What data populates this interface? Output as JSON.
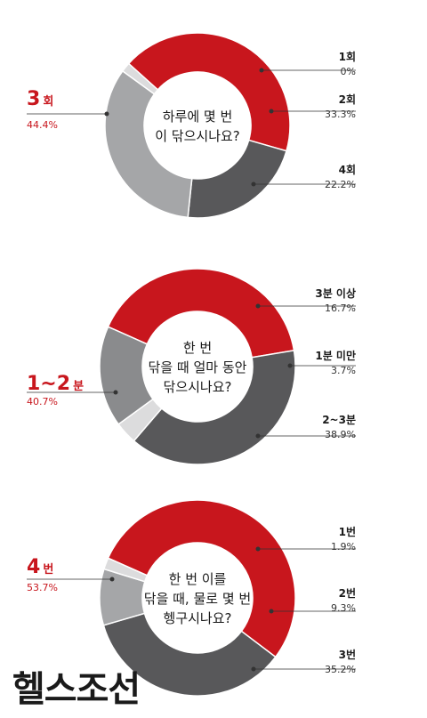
{
  "chart_data": [
    {
      "type": "donut",
      "title": "하루에 몇 번 이 닦으시나요?",
      "title_lines": [
        "하루에 몇 번",
        "이 닦으시나요?"
      ],
      "slices": [
        {
          "label": "3회",
          "label_main": "3",
          "label_unit": "회",
          "value_text": "44.4%",
          "value": 44.4,
          "color": "#c8161d",
          "emphasis": true
        },
        {
          "label": "4회",
          "value_text": "22.2%",
          "value": 22.2,
          "color": "#58585a"
        },
        {
          "label": "2회",
          "value_text": "33.3%",
          "value": 33.3,
          "color": "#a5a6a8"
        },
        {
          "label": "1회",
          "value_text": "0%",
          "value": 0,
          "color": "#dcdcdd"
        }
      ]
    },
    {
      "type": "donut",
      "title": "한 번 닦을 때 얼마 동안 닦으시나요?",
      "title_lines": [
        "한 번",
        "닦을 때 얼마 동안",
        "닦으시나요?"
      ],
      "slices": [
        {
          "label": "1~2분",
          "label_main": "1~2",
          "label_unit": "분",
          "value_text": "40.7%",
          "value": 40.7,
          "color": "#c8161d",
          "emphasis": true
        },
        {
          "label": "2~3분",
          "value_text": "38.9%",
          "value": 38.9,
          "color": "#58585a"
        },
        {
          "label": "1분 미만",
          "value_text": "3.7%",
          "value": 3.7,
          "color": "#dcdcdd"
        },
        {
          "label": "3분 이상",
          "value_text": "16.7%",
          "value": 16.7,
          "color": "#8a8b8d"
        }
      ]
    },
    {
      "type": "donut",
      "title": "한 번 이를 닦을 때, 물로 몇 번 헹구시나요?",
      "title_lines": [
        "한 번 이를",
        "닦을 때, 물로 몇 번",
        "헹구시나요?"
      ],
      "slices": [
        {
          "label": "4번",
          "label_main": "4",
          "label_unit": "번",
          "value_text": "53.7%",
          "value": 53.7,
          "color": "#c8161d",
          "emphasis": true
        },
        {
          "label": "3번",
          "value_text": "35.2%",
          "value": 35.2,
          "color": "#58585a"
        },
        {
          "label": "2번",
          "value_text": "9.3%",
          "value": 9.3,
          "color": "#a5a6a8"
        },
        {
          "label": "1번",
          "value_text": "1.9%",
          "value": 1.9,
          "color": "#dcdcdd"
        }
      ]
    }
  ],
  "logo": {
    "text": "헬스조선"
  }
}
